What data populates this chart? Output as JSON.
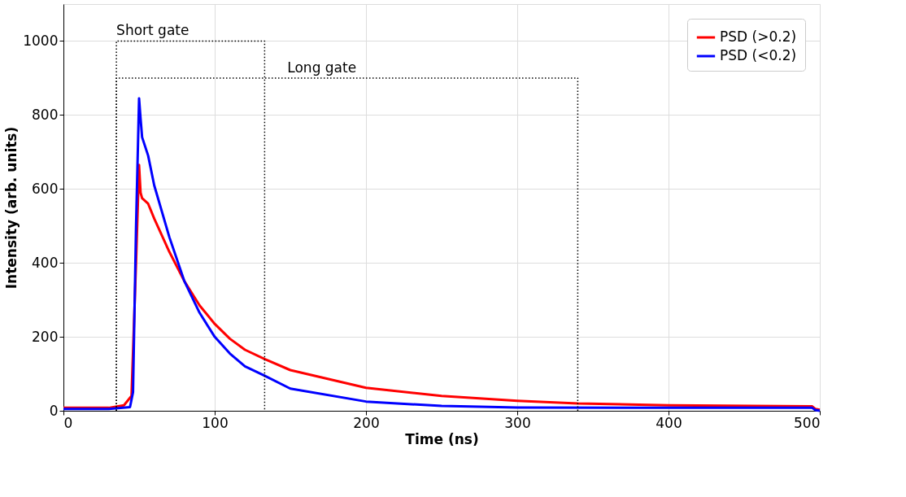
{
  "chart_data": {
    "type": "line",
    "xlabel": "Time (ns)",
    "ylabel": "Intensity (arb. units)",
    "xlim": [
      0,
      500
    ],
    "xticks": [
      0,
      100,
      200,
      300,
      400,
      500
    ],
    "ylim": [
      0,
      1100
    ],
    "yticks": [
      0,
      200,
      400,
      600,
      800,
      1000
    ],
    "grid": true,
    "legend": "top right",
    "line_style": "solid",
    "marker": "none",
    "series": [
      {
        "name": "PSD (>0.2)",
        "color": "#ff0000",
        "x": [
          0,
          30,
          40,
          45,
          48,
          50,
          51,
          52,
          56,
          60,
          70,
          80,
          90,
          100,
          110,
          120,
          133,
          150,
          200,
          250,
          300,
          340,
          400,
          495,
          497,
          500
        ],
        "values": [
          8,
          8,
          15,
          40,
          400,
          665,
          590,
          575,
          560,
          520,
          430,
          350,
          285,
          235,
          195,
          165,
          140,
          110,
          62,
          40,
          27,
          20,
          15,
          12,
          5,
          3
        ]
      },
      {
        "name": "PSD (<0.2)",
        "color": "#0000ff",
        "x": [
          0,
          30,
          44,
          46,
          48,
          50,
          51,
          52,
          56,
          60,
          70,
          80,
          90,
          100,
          110,
          120,
          133,
          150,
          200,
          250,
          300,
          400,
          495,
          497,
          500
        ],
        "values": [
          5,
          5,
          10,
          50,
          500,
          845,
          790,
          740,
          690,
          610,
          470,
          350,
          265,
          200,
          155,
          120,
          95,
          60,
          25,
          13,
          9,
          8,
          8,
          2,
          0
        ]
      },
      {
        "color": "#000000",
        "line_style": "dotted",
        "x": [
          35,
          35,
          133,
          133
        ],
        "values": [
          0,
          1000,
          1000,
          0
        ]
      },
      {
        "color": "#000000",
        "line_style": "dotted",
        "x": [
          35,
          35,
          340,
          340
        ],
        "values": [
          0,
          900,
          900,
          0
        ]
      }
    ],
    "annotations": [
      {
        "text": "Short gate",
        "x": 35,
        "y": 1000
      },
      {
        "text": "Long gate",
        "x": 148,
        "y": 900
      }
    ]
  }
}
